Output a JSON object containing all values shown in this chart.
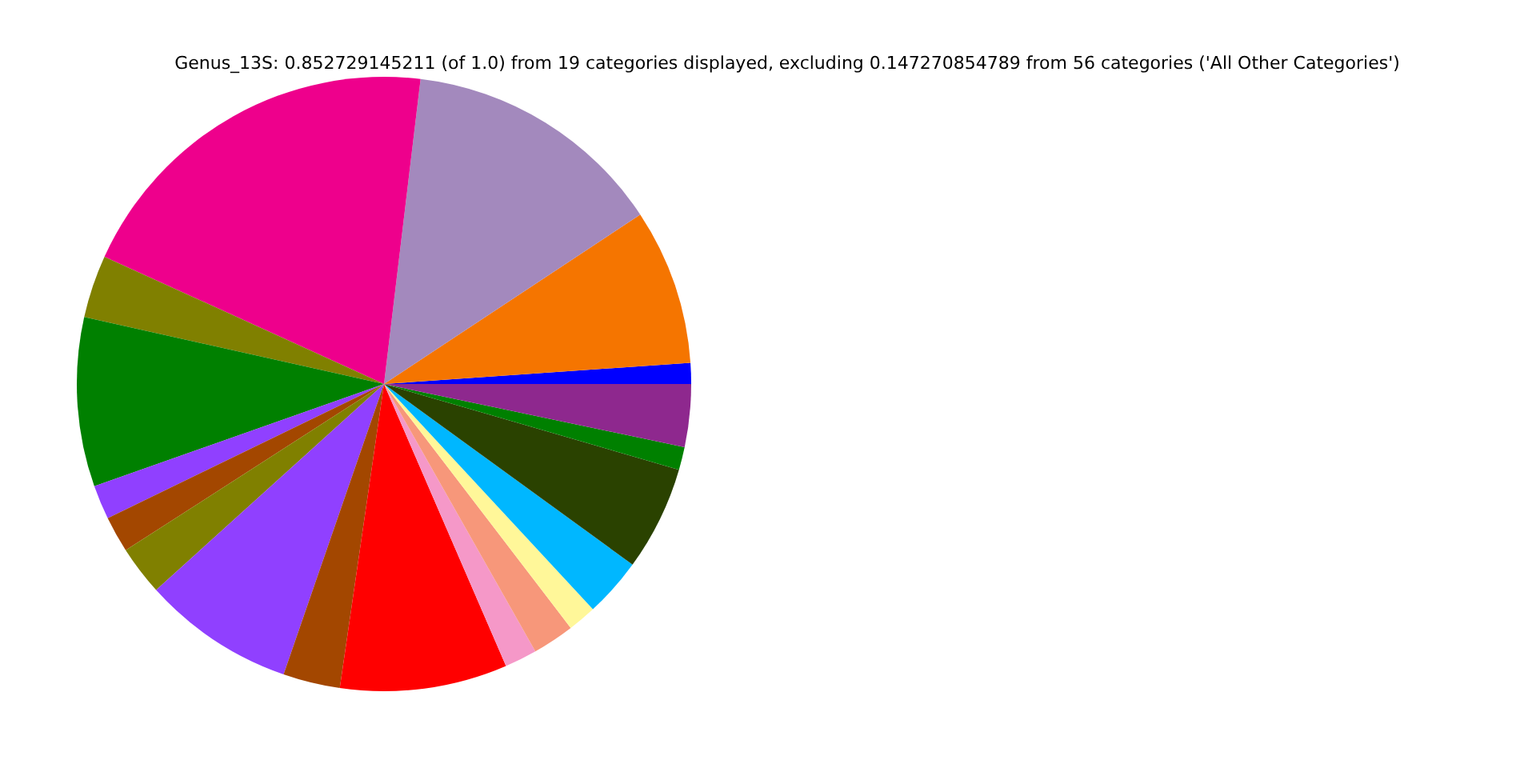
{
  "chart_data": {
    "type": "pie",
    "title": "Genus_13S: 0.852729145211 (of 1.0) from 19 categories displayed, excluding 0.147270854789 from 56 categories ('All Other Categories')",
    "categories": [
      null,
      null,
      null,
      null,
      null,
      null,
      null,
      null,
      null,
      null,
      null,
      null,
      null,
      null,
      null,
      null,
      null,
      null,
      null
    ],
    "values": [
      1.1,
      8.2,
      13.8,
      20.1,
      3.3,
      8.9,
      1.8,
      1.9,
      2.6,
      8.0,
      3.0,
      8.8,
      1.7,
      2.2,
      1.5,
      3.1,
      5.5,
      1.2,
      3.3
    ],
    "colors": [
      "#0000ff",
      "#f57500",
      "#a389bd",
      "#ee008c",
      "#808000",
      "#008000",
      "#9040ff",
      "#a34700",
      "#808000",
      "#9040ff",
      "#a34700",
      "#ff0000",
      "#f598c8",
      "#f7977a",
      "#fff799",
      "#00b7ff",
      "#2a4200",
      "#008000",
      "#8e288e"
    ]
  }
}
